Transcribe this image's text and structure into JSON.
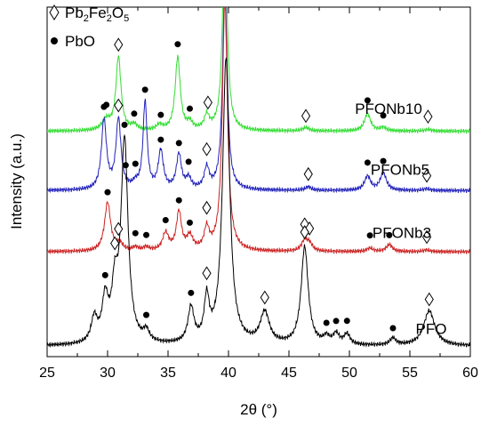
{
  "chart_data": {
    "type": "line",
    "xlabel": "2θ (°)",
    "ylabel": "Intensity (a.u.)",
    "xlim": [
      25,
      60
    ],
    "xticks": [
      "25",
      "30",
      "35",
      "40",
      "45",
      "50",
      "55",
      "60"
    ],
    "y_tick_labels": false,
    "grid": false,
    "legend": {
      "placement": "top-left",
      "entries": [
        {
          "marker": "diamond",
          "label": "Pb",
          "sub1": "2",
          "mid": "Fe",
          "sub2": "2",
          "end": "O",
          "sub3": "5"
        },
        {
          "marker": "dot",
          "label": "PbO"
        }
      ]
    },
    "series": [
      {
        "name": "PFONb10",
        "color": "#33dd33",
        "baseline": 0.355,
        "peaks": [
          [
            29.9,
            0.03,
            0.4
          ],
          [
            30.9,
            0.21,
            0.25
          ],
          [
            32.2,
            0.015,
            0.3
          ],
          [
            34.3,
            0.015,
            0.3
          ],
          [
            35.8,
            0.21,
            0.25
          ],
          [
            36.8,
            0.02,
            0.25
          ],
          [
            38.2,
            0.04,
            0.25
          ],
          [
            39.7,
            0.6,
            0.22
          ],
          [
            46.4,
            0.01,
            0.3
          ],
          [
            51.5,
            0.05,
            0.3
          ],
          [
            52.8,
            0.01,
            0.3
          ],
          [
            56.5,
            0.005,
            0.3
          ]
        ],
        "markers": [
          [
            "dot",
            29.9
          ],
          [
            "diamond",
            30.9
          ],
          [
            "dot",
            32.2
          ],
          [
            "dot",
            34.4
          ],
          [
            "dot",
            35.8
          ],
          [
            "dot",
            36.8
          ],
          [
            "diamond",
            38.3
          ],
          [
            "diamond",
            46.4
          ],
          [
            "dot",
            51.5
          ],
          [
            "dot",
            52.8
          ],
          [
            "diamond",
            56.5
          ]
        ]
      },
      {
        "name": "PFONb5",
        "color": "#2222bb",
        "baseline": 0.525,
        "peaks": [
          [
            29.7,
            0.2,
            0.25
          ],
          [
            30.9,
            0.2,
            0.25
          ],
          [
            32.3,
            0.015,
            0.3
          ],
          [
            33.1,
            0.25,
            0.2
          ],
          [
            34.4,
            0.11,
            0.25
          ],
          [
            35.9,
            0.1,
            0.25
          ],
          [
            36.7,
            0.03,
            0.25
          ],
          [
            38.2,
            0.06,
            0.25
          ],
          [
            39.7,
            0.6,
            0.22
          ],
          [
            46.6,
            0.01,
            0.3
          ],
          [
            51.5,
            0.04,
            0.3
          ],
          [
            52.8,
            0.05,
            0.3
          ],
          [
            56.4,
            0.005,
            0.3
          ]
        ],
        "markers": [
          [
            "dot",
            29.7
          ],
          [
            "diamond",
            30.9
          ],
          [
            "dot",
            31.5
          ],
          [
            "dot",
            32.3
          ],
          [
            "dot",
            33.1
          ],
          [
            "dot",
            34.4
          ],
          [
            "dot",
            35.9
          ],
          [
            "dot",
            36.7
          ],
          [
            "diamond",
            38.2
          ],
          [
            "diamond",
            46.6
          ],
          [
            "dot",
            51.5
          ],
          [
            "dot",
            52.8
          ],
          [
            "diamond",
            56.4
          ]
        ]
      },
      {
        "name": "PFONb3",
        "color": "#cc2222",
        "baseline": 0.7,
        "peaks": [
          [
            30.0,
            0.14,
            0.3
          ],
          [
            31.0,
            0.02,
            0.3
          ],
          [
            32.3,
            0.01,
            0.3
          ],
          [
            33.2,
            0.01,
            0.3
          ],
          [
            34.8,
            0.05,
            0.3
          ],
          [
            35.9,
            0.11,
            0.25
          ],
          [
            36.8,
            0.04,
            0.3
          ],
          [
            38.2,
            0.06,
            0.25
          ],
          [
            39.7,
            0.72,
            0.25
          ],
          [
            46.3,
            0.03,
            0.3
          ],
          [
            46.7,
            0.02,
            0.3
          ],
          [
            51.7,
            0.01,
            0.3
          ],
          [
            53.3,
            0.02,
            0.3
          ],
          [
            56.4,
            0.005,
            0.3
          ]
        ],
        "markers": [
          [
            "dot",
            30.0
          ],
          [
            "diamond",
            30.9
          ],
          [
            "dot",
            32.3
          ],
          [
            "dot",
            33.2
          ],
          [
            "dot",
            34.8
          ],
          [
            "dot",
            35.9
          ],
          [
            "dot",
            36.8
          ],
          [
            "diamond",
            38.2
          ],
          [
            "diamond",
            46.3
          ],
          [
            "diamond",
            46.7
          ],
          [
            "dot",
            51.7
          ],
          [
            "dot",
            53.3
          ],
          [
            "diamond",
            56.4
          ]
        ]
      },
      {
        "name": "PFO",
        "color": "#000000",
        "baseline": 0.97,
        "peaks": [
          [
            28.9,
            0.07,
            0.3
          ],
          [
            29.8,
            0.12,
            0.3
          ],
          [
            30.6,
            0.14,
            0.3
          ],
          [
            31.4,
            0.58,
            0.35
          ],
          [
            33.2,
            0.03,
            0.3
          ],
          [
            36.9,
            0.1,
            0.3
          ],
          [
            38.2,
            0.12,
            0.25
          ],
          [
            39.8,
            0.82,
            0.35
          ],
          [
            43.0,
            0.09,
            0.45
          ],
          [
            46.3,
            0.28,
            0.35
          ],
          [
            48.1,
            0.02,
            0.3
          ],
          [
            48.9,
            0.03,
            0.3
          ],
          [
            49.8,
            0.03,
            0.3
          ],
          [
            53.6,
            0.02,
            0.3
          ],
          [
            56.6,
            0.1,
            0.55
          ]
        ],
        "markers": [
          [
            "dot",
            29.8
          ],
          [
            "diamond",
            30.6
          ],
          [
            "dot",
            31.4
          ],
          [
            "dot",
            33.2
          ],
          [
            "dot",
            36.9
          ],
          [
            "diamond",
            38.2
          ],
          [
            "diamond",
            43.0
          ],
          [
            "diamond",
            46.3
          ],
          [
            "dot",
            48.1
          ],
          [
            "dot",
            48.9
          ],
          [
            "dot",
            49.8
          ],
          [
            "dot",
            53.6
          ],
          [
            "diamond",
            56.6
          ]
        ]
      }
    ]
  }
}
